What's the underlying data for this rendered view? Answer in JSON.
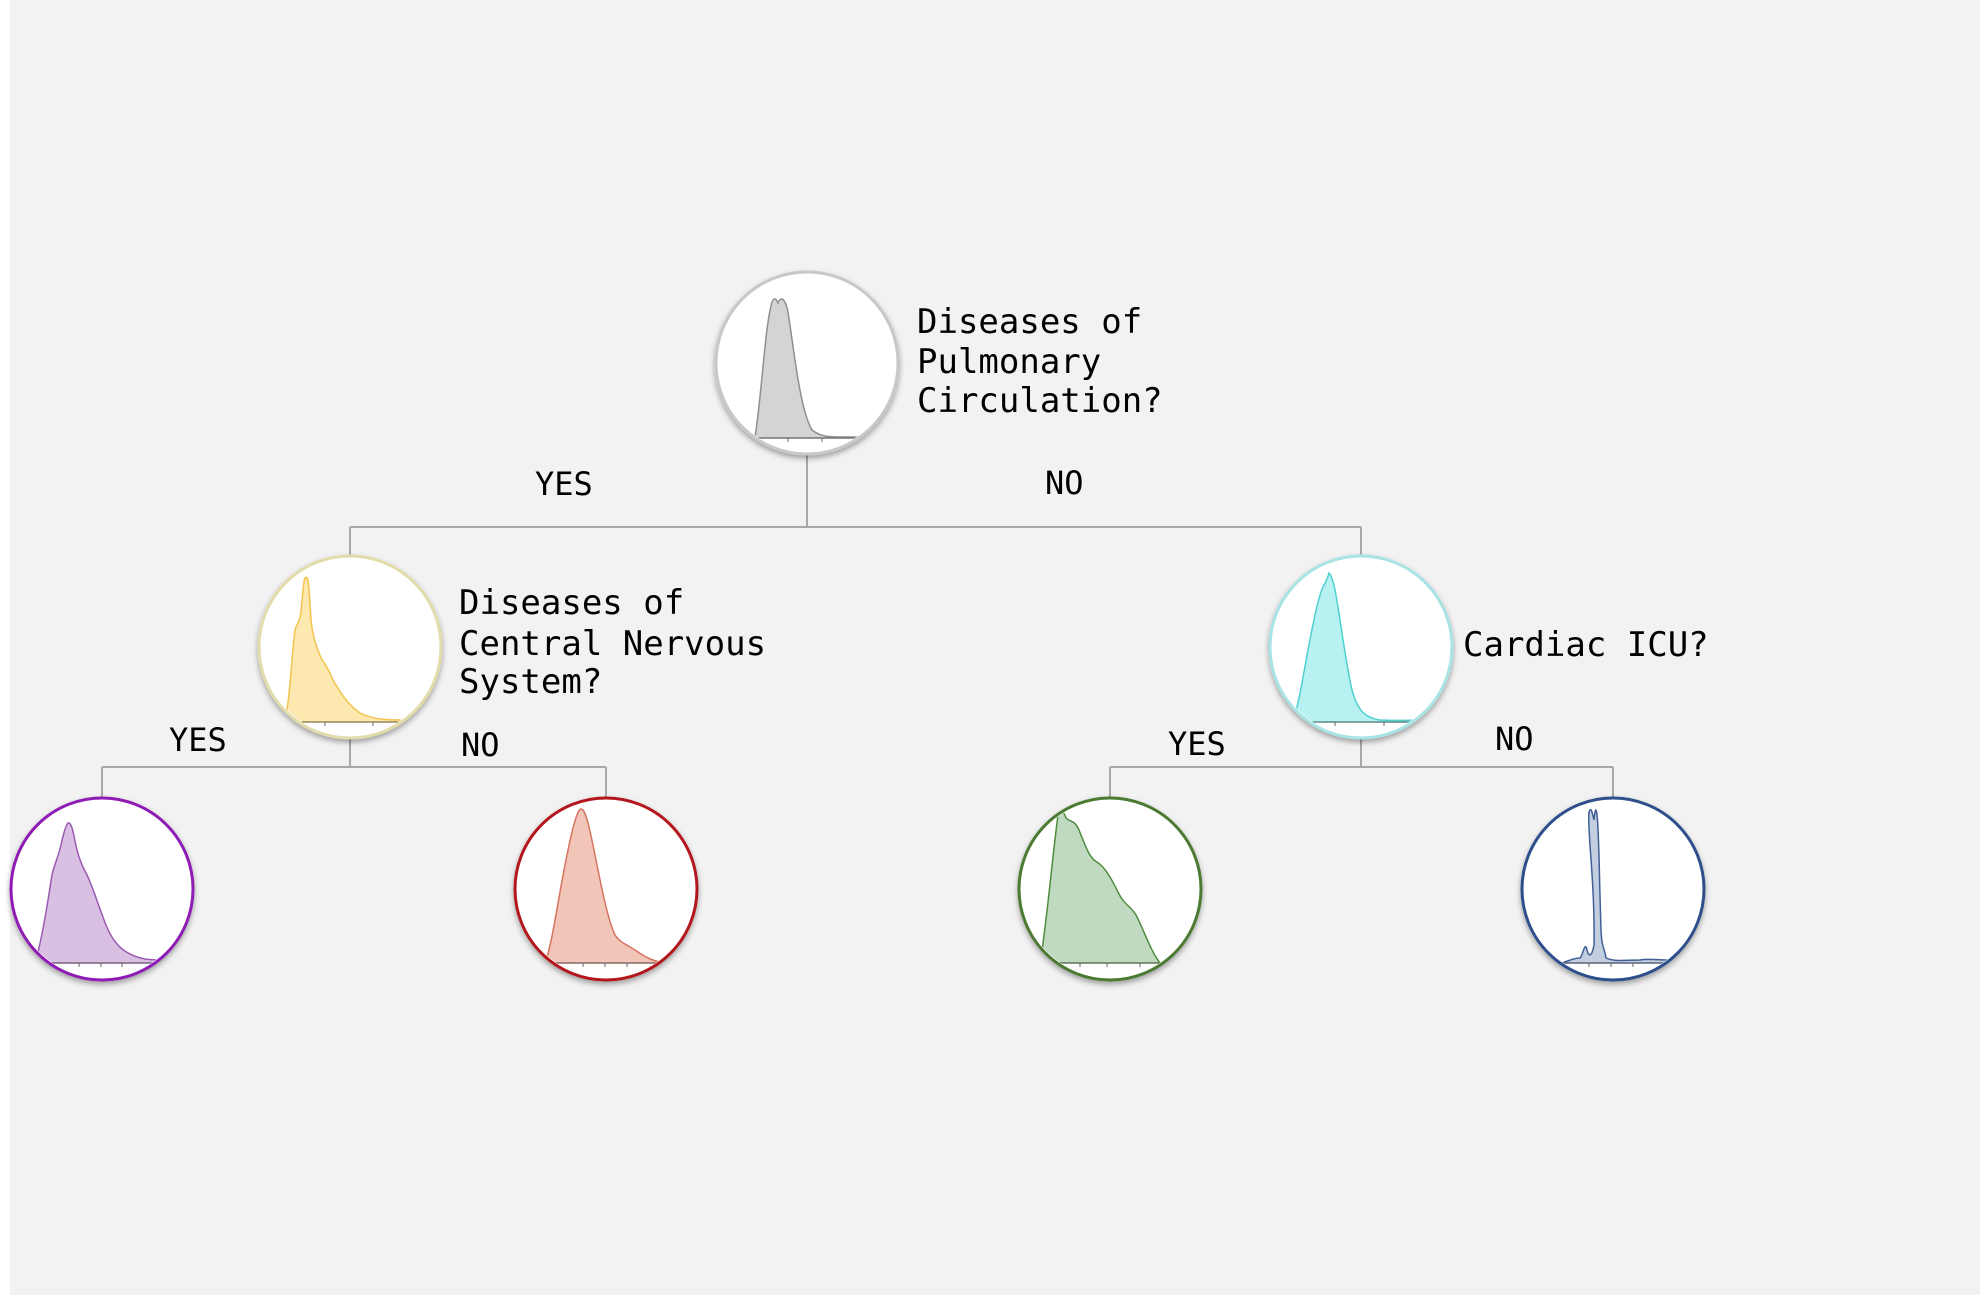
{
  "colors": {
    "panel_bg": "#f2f2f2",
    "connector": "#a8a8a8",
    "text": "#000000"
  },
  "tree": {
    "root": {
      "question_lines": [
        "Diseases of",
        "Pulmonary",
        "Circulation?"
      ],
      "ring_color": "#c8c8c8",
      "fill_color": "#d4d4d4",
      "stroke_color": "#8f8f8f",
      "yes_label": "YES",
      "no_label": "NO"
    },
    "left": {
      "question_lines": [
        "Diseases of",
        "Central Nervous",
        "System?"
      ],
      "ring_color": "#e2dcaa",
      "fill_color": "#fde8b0",
      "stroke_color": "#f2c44f",
      "yes_label": "YES",
      "no_label": "NO"
    },
    "right": {
      "question_lines": [
        "Cardiac ICU?"
      ],
      "ring_color": "#a9e3e3",
      "fill_color": "#b7f1f1",
      "stroke_color": "#4fd0d0",
      "yes_label": "YES",
      "no_label": "NO"
    },
    "leaves": [
      {
        "name": "leaf-purple",
        "ring_color": "#8e1eb4",
        "fill_color": "#d9c0e2",
        "stroke_color": "#9a5ab2"
      },
      {
        "name": "leaf-red",
        "ring_color": "#b3191b",
        "fill_color": "#f1c6b9",
        "stroke_color": "#d6735f"
      },
      {
        "name": "leaf-green",
        "ring_color": "#4b7a32",
        "fill_color": "#c0dac2",
        "stroke_color": "#4f8c3f"
      },
      {
        "name": "leaf-blue",
        "ring_color": "#2d4f8c",
        "fill_color": "#c3cfe1",
        "stroke_color": "#3f5f95"
      }
    ]
  }
}
